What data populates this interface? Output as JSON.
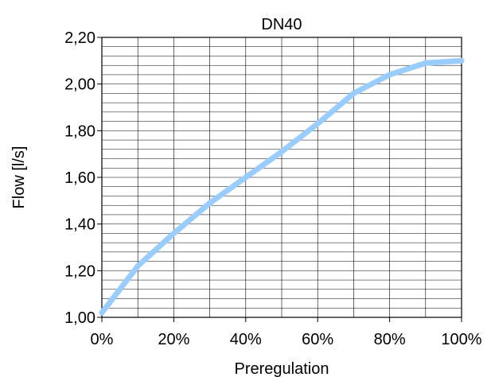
{
  "chart_data": {
    "type": "line",
    "title": "DN40",
    "xlabel": "Preregulation",
    "ylabel": "Flow [l/s]",
    "xlim": [
      0,
      100
    ],
    "ylim": [
      1.0,
      2.2
    ],
    "x_ticks": [
      "0%",
      "20%",
      "40%",
      "60%",
      "80%",
      "100%"
    ],
    "y_ticks": [
      "1,00",
      "1,20",
      "1,40",
      "1,60",
      "1,80",
      "2,00",
      "2,20"
    ],
    "grid": true,
    "legend": "none",
    "series": [
      {
        "color": "#99CCFF",
        "x": [
          0,
          10,
          20,
          30,
          40,
          50,
          60,
          70,
          80,
          90,
          100
        ],
        "y": [
          1.02,
          1.22,
          1.36,
          1.49,
          1.6,
          1.71,
          1.83,
          1.96,
          2.04,
          2.09,
          2.1
        ]
      }
    ]
  }
}
